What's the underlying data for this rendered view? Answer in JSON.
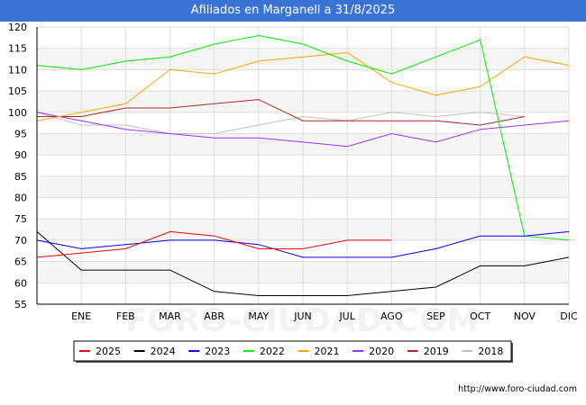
{
  "header": {
    "title": "Afiliados en Marganell a 31/8/2025"
  },
  "footer": {
    "source": "http://www.foro-ciudad.com"
  },
  "watermark": "FORO-CIUDAD.COM",
  "chart_data": {
    "type": "line",
    "title": "Afiliados en Marganell a 31/8/2025",
    "xlabel": "",
    "ylabel": "",
    "categories": [
      "",
      "ENE",
      "FEB",
      "MAR",
      "ABR",
      "MAY",
      "JUN",
      "JUL",
      "AGO",
      "SEP",
      "OCT",
      "NOV",
      "DIC"
    ],
    "ylim": [
      55,
      120
    ],
    "yticks": [
      55,
      60,
      65,
      70,
      75,
      80,
      85,
      90,
      95,
      100,
      105,
      110,
      115,
      120
    ],
    "grid": true,
    "legend_position": "bottom",
    "series": [
      {
        "name": "2025",
        "color": "#ff0000",
        "values": [
          66,
          67,
          68,
          72,
          71,
          68,
          68,
          70,
          70,
          null,
          null,
          null,
          null
        ]
      },
      {
        "name": "2024",
        "color": "#000000",
        "values": [
          72,
          63,
          63,
          63,
          58,
          57,
          57,
          57,
          58,
          59,
          64,
          64,
          66
        ]
      },
      {
        "name": "2023",
        "color": "#0000ff",
        "values": [
          70,
          68,
          69,
          70,
          70,
          69,
          66,
          66,
          66,
          68,
          71,
          71,
          72
        ]
      },
      {
        "name": "2022",
        "color": "#00ee00",
        "values": [
          111,
          110,
          112,
          113,
          116,
          118,
          116,
          112,
          109,
          113,
          117,
          71,
          70
        ]
      },
      {
        "name": "2021",
        "color": "#ffa500",
        "values": [
          98,
          100,
          102,
          110,
          109,
          112,
          113,
          114,
          107,
          104,
          106,
          113,
          111
        ]
      },
      {
        "name": "2020",
        "color": "#9b30ff",
        "values": [
          100,
          98,
          96,
          95,
          94,
          94,
          93,
          92,
          95,
          93,
          96,
          97,
          98
        ]
      },
      {
        "name": "2019",
        "color": "#a52a2a",
        "values": [
          99,
          99,
          101,
          101,
          102,
          103,
          98,
          98,
          98,
          98,
          97,
          99,
          null
        ]
      },
      {
        "name": "2018",
        "color": "#c0c0c0",
        "values": [
          100,
          97,
          97,
          95,
          95,
          97,
          99,
          98,
          100,
          99,
          100,
          99,
          null
        ]
      }
    ]
  }
}
